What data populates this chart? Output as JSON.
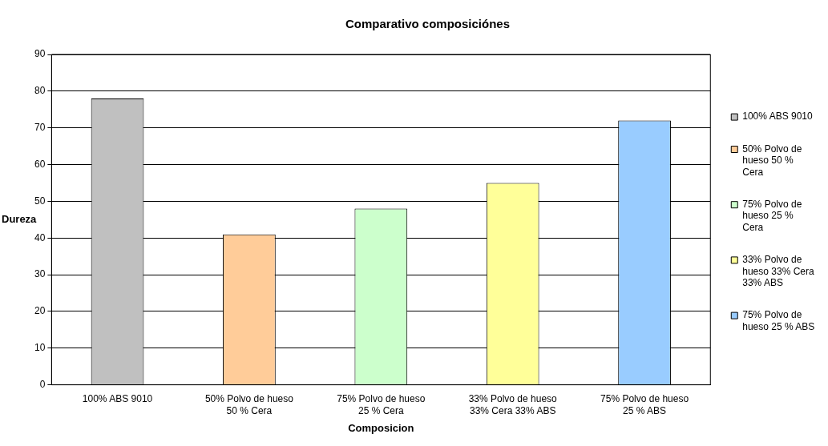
{
  "chart_data": {
    "type": "bar",
    "title": "Comparativo composiciónes",
    "xlabel": "Composicion",
    "ylabel": "Dureza",
    "categories": [
      "100% ABS 9010",
      "50% Polvo de hueso 50 % Cera",
      "75% Polvo de hueso 25 % Cera",
      "33% Polvo de hueso 33% Cera 33% ABS",
      "75% Polvo de hueso 25 % ABS"
    ],
    "series": [
      {
        "name": "100% ABS 9010",
        "color": "#c0c0c0",
        "values": [
          78,
          null,
          null,
          null,
          null
        ]
      },
      {
        "name": "50% Polvo de hueso 50 % Cera",
        "color": "#ffcc99",
        "values": [
          null,
          41,
          null,
          null,
          null
        ]
      },
      {
        "name": "75% Polvo de hueso 25 % Cera",
        "color": "#ccffcc",
        "values": [
          null,
          null,
          48,
          null,
          null
        ]
      },
      {
        "name": "33% Polvo de hueso 33% Cera 33% ABS",
        "color": "#ffff99",
        "values": [
          null,
          null,
          null,
          55,
          null
        ]
      },
      {
        "name": "75% Polvo de hueso 25 % ABS",
        "color": "#99ccff",
        "values": [
          null,
          null,
          null,
          null,
          72
        ]
      }
    ],
    "ylim": [
      0,
      90
    ],
    "yticks": [
      0,
      10,
      20,
      30,
      40,
      50,
      60,
      70,
      80,
      90
    ],
    "grid": "y",
    "legend": "right"
  }
}
